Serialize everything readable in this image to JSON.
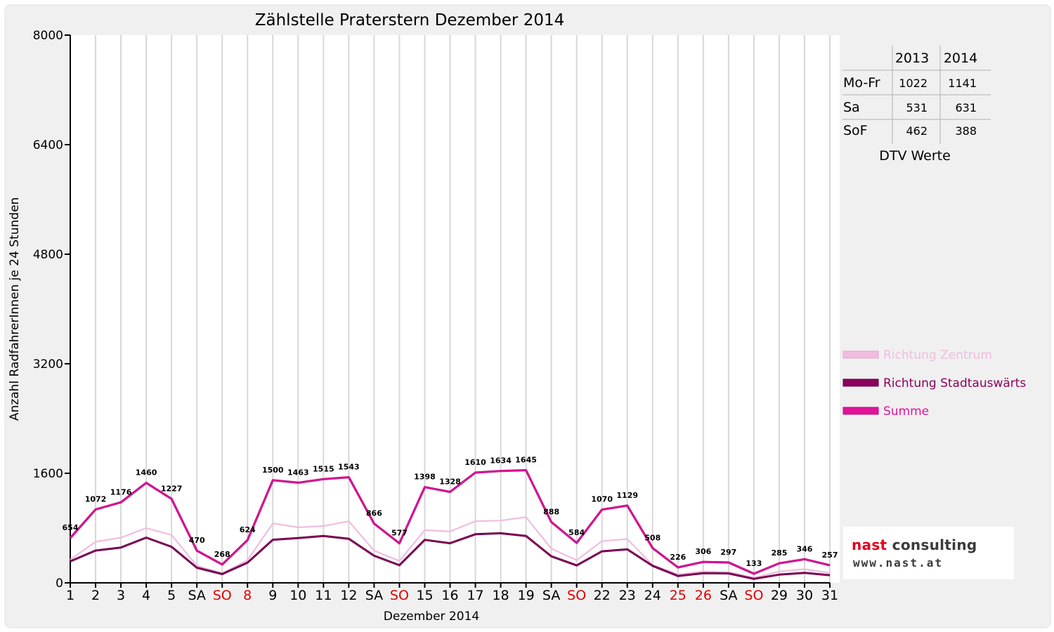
{
  "chart_data": {
    "type": "line",
    "title": "Zählstelle Praterstern Dezember 2014",
    "xlabel": "Dezember 2014",
    "ylabel": "Anzahl RadfahrerInnen je 24 Stunden",
    "ylim": [
      0,
      8000
    ],
    "yticks": [
      "0",
      "1600",
      "3200",
      "4800",
      "6400",
      "8000"
    ],
    "grid": "vertical",
    "legend_position": "right",
    "categories": [
      "1",
      "2",
      "3",
      "4",
      "5",
      "SA",
      "SO",
      "8",
      "9",
      "10",
      "11",
      "12",
      "SA",
      "SO",
      "15",
      "16",
      "17",
      "18",
      "19",
      "SA",
      "SO",
      "22",
      "23",
      "24",
      "25",
      "26",
      "SA",
      "SO",
      "29",
      "30",
      "31"
    ],
    "category_colors": [
      "#000000",
      "#000000",
      "#000000",
      "#000000",
      "#000000",
      "#000000",
      "#e00000",
      "#e00000",
      "#000000",
      "#000000",
      "#000000",
      "#000000",
      "#000000",
      "#e00000",
      "#000000",
      "#000000",
      "#000000",
      "#000000",
      "#000000",
      "#000000",
      "#e00000",
      "#000000",
      "#000000",
      "#000000",
      "#e00000",
      "#e00000",
      "#000000",
      "#e00000",
      "#000000",
      "#000000",
      "#000000"
    ],
    "series": [
      {
        "name": "Richtung Zentrum",
        "color": "#f0bde0",
        "values": [
          340,
          600,
          660,
          800,
          700,
          250,
          140,
          330,
          870,
          810,
          830,
          900,
          470,
          320,
          770,
          750,
          900,
          910,
          960,
          500,
          330,
          610,
          640,
          260,
          125,
          165,
          160,
          75,
          165,
          200,
          145
        ]
      },
      {
        "name": "Richtung Stadtauswärts",
        "color": "#8b005c",
        "values": [
          314,
          472,
          516,
          660,
          527,
          220,
          128,
          294,
          630,
          653,
          685,
          643,
          396,
          257,
          628,
          578,
          710,
          724,
          685,
          388,
          254,
          460,
          489,
          248,
          101,
          141,
          137,
          58,
          120,
          146,
          112
        ]
      },
      {
        "name": "Summe",
        "color": "#e0139a",
        "values": [
          654,
          1072,
          1176,
          1460,
          1227,
          470,
          268,
          624,
          1500,
          1463,
          1515,
          1543,
          866,
          577,
          1398,
          1328,
          1610,
          1634,
          1645,
          888,
          584,
          1070,
          1129,
          508,
          226,
          306,
          297,
          133,
          285,
          346,
          257
        ]
      }
    ],
    "data_labels": [
      "654",
      "1072",
      "1176",
      "1460",
      "1227",
      "470",
      "268",
      "624",
      "1500",
      "1463",
      "1515",
      "1543",
      "866",
      "577",
      "1398",
      "1328",
      "1610",
      "1634",
      "1645",
      "888",
      "584",
      "1070",
      "1129",
      "508",
      "226",
      "306",
      "297",
      "133",
      "285",
      "346",
      "257"
    ]
  },
  "dtv_table": {
    "caption": "DTV Werte",
    "columns": [
      "",
      "2013",
      "2014"
    ],
    "rows": [
      {
        "label": "Mo-Fr",
        "v2013": "1022",
        "v2014": "1141"
      },
      {
        "label": "Sa",
        "v2013": "531",
        "v2014": "631"
      },
      {
        "label": "SoF",
        "v2013": "462",
        "v2014": "388"
      }
    ]
  },
  "logo": {
    "brand_first": "nast",
    "brand_second": " consulting",
    "url": "www.nast.at"
  }
}
